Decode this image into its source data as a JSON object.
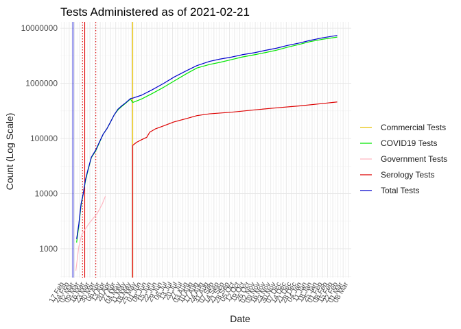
{
  "chart_data": {
    "type": "line",
    "title": "Tests Administered as of 2021-02-21",
    "xlabel": "Date",
    "ylabel": "Count (Log Scale)",
    "y_scale": "log10",
    "ylim": [
      300,
      13000000
    ],
    "y_ticks": [
      {
        "value": 1000,
        "label": "1000"
      },
      {
        "value": 10000,
        "label": "10000"
      },
      {
        "value": 100000,
        "label": "100000"
      },
      {
        "value": 1000000,
        "label": "1000000"
      },
      {
        "value": 10000000,
        "label": "10000000"
      }
    ],
    "xlim": [
      "2020-02-12",
      "2021-03-12"
    ],
    "x_ticks": [
      {
        "date": "2020-02-17",
        "label": "17 Feb"
      },
      {
        "date": "2020-02-24",
        "label": "24 Feb"
      },
      {
        "date": "2020-03-02",
        "label": "02 Mar"
      },
      {
        "date": "2020-03-09",
        "label": "09 Mar"
      },
      {
        "date": "2020-03-16",
        "label": "16 Mar"
      },
      {
        "date": "2020-03-23",
        "label": "23 Mar"
      },
      {
        "date": "2020-03-30",
        "label": "30 Mar"
      },
      {
        "date": "2020-04-06",
        "label": "06 Apr"
      },
      {
        "date": "2020-04-13",
        "label": "13 Apr"
      },
      {
        "date": "2020-04-20",
        "label": "20 Apr"
      },
      {
        "date": "2020-04-27",
        "label": "27 Apr"
      },
      {
        "date": "2020-05-04",
        "label": "04 May"
      },
      {
        "date": "2020-05-11",
        "label": "11 May"
      },
      {
        "date": "2020-05-18",
        "label": "18 May"
      },
      {
        "date": "2020-05-25",
        "label": "25 May"
      },
      {
        "date": "2020-06-01",
        "label": "01 Jun"
      },
      {
        "date": "2020-06-08",
        "label": "08 Jun"
      },
      {
        "date": "2020-06-15",
        "label": "15 Jun"
      },
      {
        "date": "2020-06-22",
        "label": "22 Jun"
      },
      {
        "date": "2020-06-29",
        "label": "29 Jun"
      },
      {
        "date": "2020-07-06",
        "label": "06 Jul"
      },
      {
        "date": "2020-07-13",
        "label": "13 Jul"
      },
      {
        "date": "2020-07-20",
        "label": "20 Jul"
      },
      {
        "date": "2020-07-27",
        "label": "27 Jul"
      },
      {
        "date": "2020-08-03",
        "label": "03 Aug"
      },
      {
        "date": "2020-08-10",
        "label": "10 Aug"
      },
      {
        "date": "2020-08-17",
        "label": "17 Aug"
      },
      {
        "date": "2020-08-24",
        "label": "24 Aug"
      },
      {
        "date": "2020-08-31",
        "label": "31 Aug"
      },
      {
        "date": "2020-09-07",
        "label": "07 Sep"
      },
      {
        "date": "2020-09-14",
        "label": "14 Sep"
      },
      {
        "date": "2020-09-21",
        "label": "21 Sep"
      },
      {
        "date": "2020-09-28",
        "label": "28 Sep"
      },
      {
        "date": "2020-10-05",
        "label": "05 Oct"
      },
      {
        "date": "2020-10-12",
        "label": "12 Oct"
      },
      {
        "date": "2020-10-19",
        "label": "19 Oct"
      },
      {
        "date": "2020-10-26",
        "label": "26 Oct"
      },
      {
        "date": "2020-11-02",
        "label": "02 Nov"
      },
      {
        "date": "2020-11-09",
        "label": "09 Nov"
      },
      {
        "date": "2020-11-16",
        "label": "16 Nov"
      },
      {
        "date": "2020-11-23",
        "label": "23 Nov"
      },
      {
        "date": "2020-11-30",
        "label": "30 Nov"
      },
      {
        "date": "2020-12-07",
        "label": "07 Dec"
      },
      {
        "date": "2020-12-14",
        "label": "14 Dec"
      },
      {
        "date": "2020-12-21",
        "label": "21 Dec"
      },
      {
        "date": "2020-12-28",
        "label": "28 Dec"
      },
      {
        "date": "2021-01-04",
        "label": "04 Jan"
      },
      {
        "date": "2021-01-11",
        "label": "11 Jan"
      },
      {
        "date": "2021-01-18",
        "label": "18 Jan"
      },
      {
        "date": "2021-01-25",
        "label": "25 Jan"
      },
      {
        "date": "2021-02-01",
        "label": "01 Feb"
      },
      {
        "date": "2021-02-08",
        "label": "08 Feb"
      },
      {
        "date": "2021-02-15",
        "label": "15 Feb"
      },
      {
        "date": "2021-02-22",
        "label": "22 Feb"
      },
      {
        "date": "2021-03-01",
        "label": "01 Mar"
      },
      {
        "date": "2021-03-08",
        "label": "08 Mar"
      }
    ],
    "grid": true,
    "legend_position": "right",
    "series": [
      {
        "name": "Commercial Tests",
        "color": "#e6c000",
        "points": [
          [
            "2020-05-20",
            300
          ],
          [
            "2020-05-20",
            13000000
          ]
        ]
      },
      {
        "name": "COVID19 Tests",
        "color": "#00e600",
        "points": [
          [
            "2020-03-05",
            1300
          ],
          [
            "2020-03-08",
            2600
          ],
          [
            "2020-03-11",
            6000
          ],
          [
            "2020-03-14",
            10000
          ],
          [
            "2020-03-17",
            17000
          ],
          [
            "2020-03-20",
            25000
          ],
          [
            "2020-03-25",
            45000
          ],
          [
            "2020-03-31",
            60000
          ],
          [
            "2020-04-05",
            85000
          ],
          [
            "2020-04-10",
            120000
          ],
          [
            "2020-04-15",
            150000
          ],
          [
            "2020-04-20",
            200000
          ],
          [
            "2020-04-25",
            270000
          ],
          [
            "2020-04-30",
            330000
          ],
          [
            "2020-05-05",
            380000
          ],
          [
            "2020-05-10",
            430000
          ],
          [
            "2020-05-17",
            520000
          ],
          [
            "2020-05-20",
            450000
          ],
          [
            "2020-06-01",
            520000
          ],
          [
            "2020-06-15",
            650000
          ],
          [
            "2020-07-01",
            850000
          ],
          [
            "2020-07-15",
            1100000
          ],
          [
            "2020-08-01",
            1500000
          ],
          [
            "2020-08-15",
            1900000
          ],
          [
            "2020-09-01",
            2200000
          ],
          [
            "2020-09-15",
            2400000
          ],
          [
            "2020-10-01",
            2700000
          ],
          [
            "2020-10-15",
            3000000
          ],
          [
            "2020-11-01",
            3300000
          ],
          [
            "2020-11-15",
            3600000
          ],
          [
            "2020-12-01",
            4000000
          ],
          [
            "2020-12-15",
            4500000
          ],
          [
            "2021-01-01",
            5100000
          ],
          [
            "2021-01-15",
            5700000
          ],
          [
            "2021-02-01",
            6300000
          ],
          [
            "2021-02-21",
            6900000
          ]
        ]
      },
      {
        "name": "Government Tests",
        "color": "#ffb6c1",
        "points": [
          [
            "2020-03-04",
            400
          ],
          [
            "2020-03-08",
            1100
          ],
          [
            "2020-03-12",
            1800
          ],
          [
            "2020-03-17",
            2300
          ],
          [
            "2020-03-22",
            2900
          ],
          [
            "2020-03-27",
            3500
          ],
          [
            "2020-04-01",
            4200
          ],
          [
            "2020-04-05",
            5200
          ],
          [
            "2020-04-09",
            6600
          ],
          [
            "2020-04-13",
            9000
          ]
        ]
      },
      {
        "name": "Serology Tests",
        "color": "#dd0000",
        "points": [
          [
            "2020-05-20",
            300
          ],
          [
            "2020-05-20",
            4500
          ],
          [
            "2020-05-20",
            75000
          ],
          [
            "2020-05-25",
            85000
          ],
          [
            "2020-06-01",
            95000
          ],
          [
            "2020-06-08",
            105000
          ],
          [
            "2020-06-12",
            130000
          ],
          [
            "2020-06-20",
            150000
          ],
          [
            "2020-07-01",
            170000
          ],
          [
            "2020-07-15",
            200000
          ],
          [
            "2020-08-01",
            230000
          ],
          [
            "2020-08-15",
            260000
          ],
          [
            "2020-09-01",
            280000
          ],
          [
            "2020-10-01",
            300000
          ],
          [
            "2020-11-01",
            330000
          ],
          [
            "2020-12-01",
            360000
          ],
          [
            "2021-01-01",
            390000
          ],
          [
            "2021-02-01",
            430000
          ],
          [
            "2021-02-21",
            460000
          ]
        ]
      },
      {
        "name": "Total Tests",
        "color": "#0000cc",
        "points": [
          [
            "2020-03-05",
            1500
          ],
          [
            "2020-03-08",
            2800
          ],
          [
            "2020-03-11",
            6500
          ],
          [
            "2020-03-14",
            10000
          ],
          [
            "2020-03-17",
            18000
          ],
          [
            "2020-03-20",
            26000
          ],
          [
            "2020-03-25",
            46000
          ],
          [
            "2020-03-31",
            62000
          ],
          [
            "2020-04-05",
            87000
          ],
          [
            "2020-04-10",
            120000
          ],
          [
            "2020-04-15",
            150000
          ],
          [
            "2020-04-20",
            200000
          ],
          [
            "2020-04-25",
            270000
          ],
          [
            "2020-04-30",
            340000
          ],
          [
            "2020-05-05",
            390000
          ],
          [
            "2020-05-10",
            440000
          ],
          [
            "2020-05-17",
            530000
          ],
          [
            "2020-05-20",
            540000
          ],
          [
            "2020-06-01",
            610000
          ],
          [
            "2020-06-15",
            760000
          ],
          [
            "2020-07-01",
            1000000
          ],
          [
            "2020-07-15",
            1300000
          ],
          [
            "2020-08-01",
            1700000
          ],
          [
            "2020-08-15",
            2100000
          ],
          [
            "2020-09-01",
            2500000
          ],
          [
            "2020-09-15",
            2750000
          ],
          [
            "2020-10-01",
            3000000
          ],
          [
            "2020-10-15",
            3300000
          ],
          [
            "2020-11-01",
            3600000
          ],
          [
            "2020-11-15",
            3950000
          ],
          [
            "2020-12-01",
            4350000
          ],
          [
            "2020-12-15",
            4850000
          ],
          [
            "2021-01-01",
            5400000
          ],
          [
            "2021-01-15",
            6000000
          ],
          [
            "2021-02-01",
            6700000
          ],
          [
            "2021-02-21",
            7400000
          ]
        ]
      }
    ],
    "reference_lines": [
      {
        "date": "2020-02-29",
        "color": "#0000cc",
        "style": "solid"
      },
      {
        "date": "2020-03-13",
        "color": "#dd0000",
        "style": "dotted"
      },
      {
        "date": "2020-03-16",
        "color": "#dd0000",
        "style": "solid"
      },
      {
        "date": "2020-03-31",
        "color": "#dd0000",
        "style": "dotted"
      },
      {
        "date": "2020-05-20",
        "color": "#e6c000",
        "style": "solid"
      }
    ]
  }
}
